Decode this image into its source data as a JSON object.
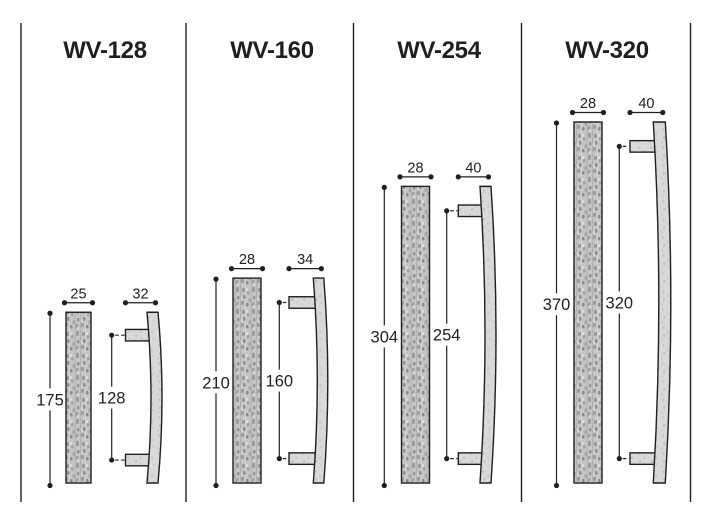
{
  "figure": {
    "colors": {
      "background": "#ffffff",
      "line": "#1f1f1f",
      "bar_base": "#c6c6c6",
      "bar_speckle_dark": "#949494",
      "bar_speckle_light": "#dcdcdc",
      "profile_base": "#d9d9d9",
      "profile_speckle": "#c4c4c4"
    },
    "panels": [
      {
        "model": "WV-128",
        "front_width": "25",
        "overall_length": "175",
        "projection": "32",
        "hole_centers": "128"
      },
      {
        "model": "WV-160",
        "front_width": "28",
        "overall_length": "210",
        "projection": "34",
        "hole_centers": "160"
      },
      {
        "model": "WV-254",
        "front_width": "28",
        "overall_length": "304",
        "projection": "40",
        "hole_centers": "254"
      },
      {
        "model": "WV-320",
        "front_width": "28",
        "overall_length": "370",
        "projection": "40",
        "hole_centers": "320"
      }
    ]
  }
}
